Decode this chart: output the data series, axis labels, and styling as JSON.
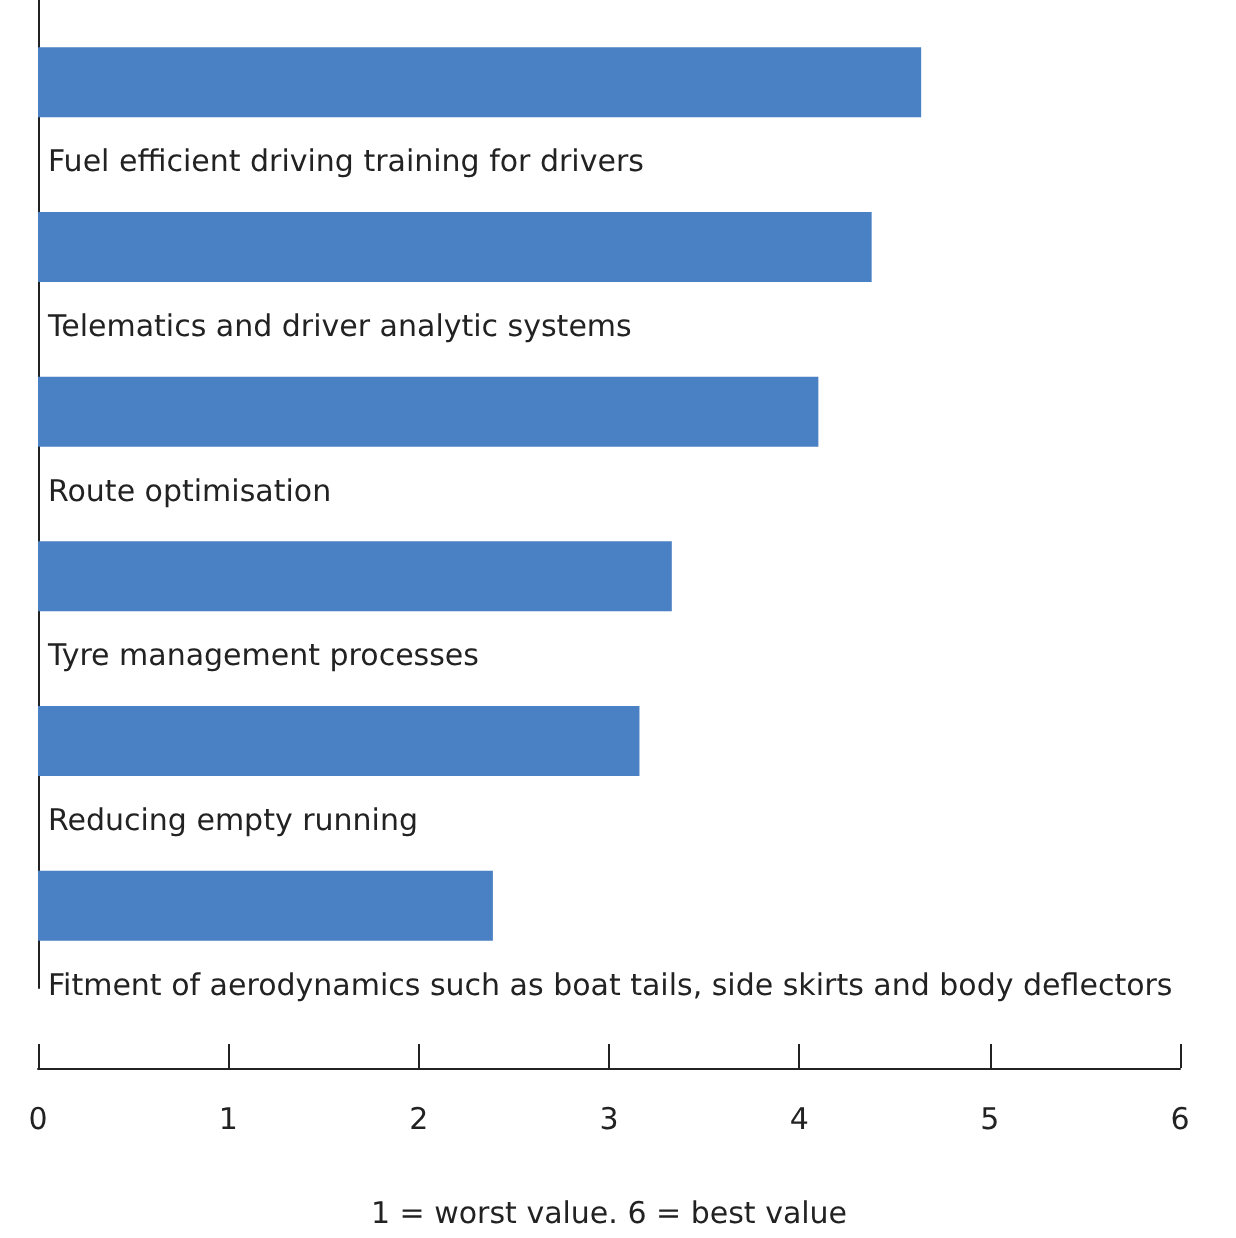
{
  "chart_data": {
    "type": "bar",
    "orientation": "horizontal",
    "xlabel": "1 = worst value. 6 = best value",
    "categories": [
      "Fuel efficient driving training for drivers",
      "Telematics and driver analytic systems",
      "Route optimisation",
      "Tyre management processes",
      "Reducing empty running",
      "Fitment of aerodynamics such as boat tails, side skirts and body deflectors"
    ],
    "values": [
      4.64,
      4.38,
      4.1,
      3.33,
      3.16,
      2.39
    ],
    "color": "#4a80c4",
    "xlim": [
      0,
      6
    ],
    "xticks": [
      0,
      1,
      2,
      3,
      4,
      5,
      6
    ],
    "grid": false,
    "tick_labels": "x"
  }
}
